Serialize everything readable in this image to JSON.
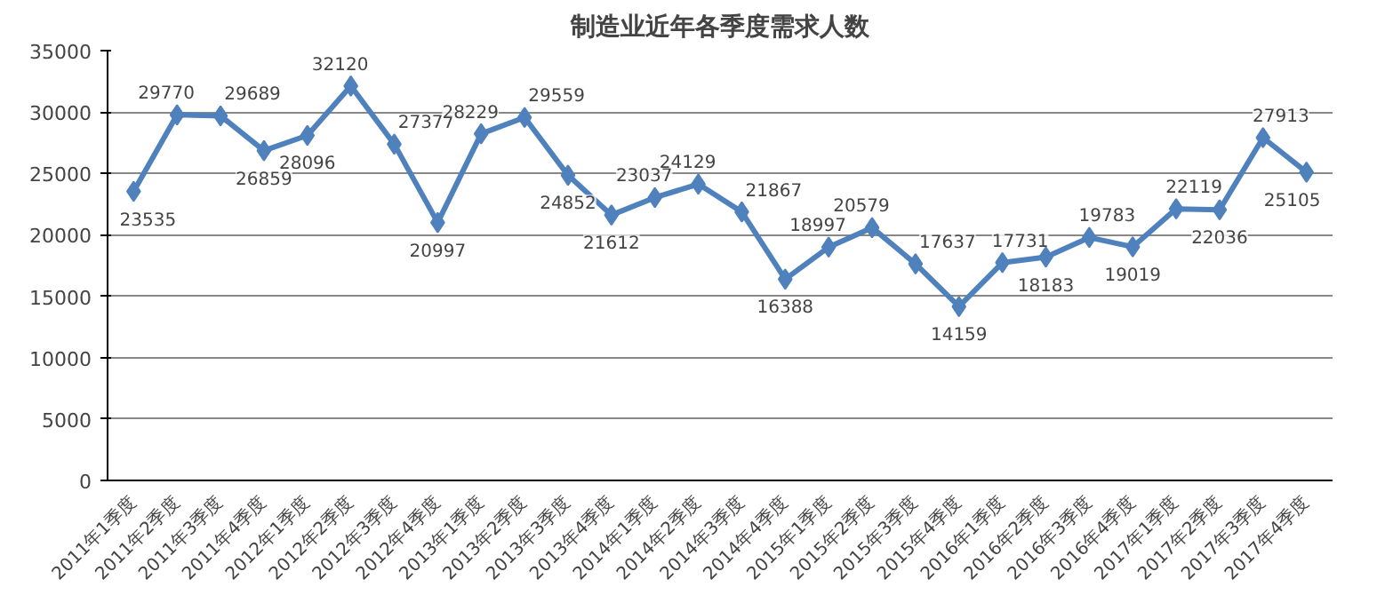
{
  "chart_data": {
    "type": "line",
    "title": "制造业近年各季度需求人数",
    "categories": [
      "2011年1季度",
      "2011年2季度",
      "2011年3季度",
      "2011年4季度",
      "2012年1季度",
      "2012年2季度",
      "2012年3季度",
      "2012年4季度",
      "2013年1季度",
      "2013年2季度",
      "2013年3季度",
      "2013年4季度",
      "2014年1季度",
      "2014年2季度",
      "2014年3季度",
      "2014年4季度",
      "2015年1季度",
      "2015年2季度",
      "2015年3季度",
      "2015年4季度",
      "2016年1季度",
      "2016年2季度",
      "2016年3季度",
      "2016年4季度",
      "2017年1季度",
      "2017年2季度",
      "2017年3季度",
      "2017年4季度"
    ],
    "series": [
      {
        "color": "#4f81bd",
        "values": [
          23535,
          29770,
          29689,
          26859,
          28096,
          32120,
          27377,
          20997,
          28229,
          29559,
          24852,
          21612,
          23037,
          24129,
          21867,
          16388,
          18997,
          20579,
          17637,
          14159,
          17731,
          18183,
          19783,
          19019,
          22119,
          22036,
          27913,
          25105
        ]
      }
    ],
    "ylim": [
      0,
      35000
    ],
    "yticks": [
      0,
      5000,
      10000,
      15000,
      20000,
      25000,
      30000,
      35000
    ],
    "grid": "y",
    "marker": "diamond",
    "line_style": "solid",
    "data_labels": true
  }
}
